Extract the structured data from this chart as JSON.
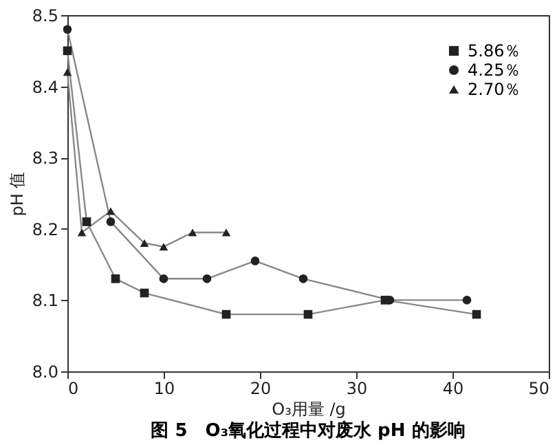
{
  "chart_data": {
    "type": "line",
    "title": "图 5　O₃氧化过程中对废水 pH 的影响",
    "xlabel": "O₃用量 /g",
    "ylabel": "pH 值",
    "xlim": [
      0,
      50
    ],
    "xticks": [
      0,
      10,
      20,
      30,
      40,
      50
    ],
    "ylim": [
      8.0,
      8.5
    ],
    "yticks": [
      {
        "value": 8,
        "label": "8.0"
      },
      8.1,
      8.2,
      8.3,
      8.4,
      8.5
    ],
    "grid": false,
    "legend": "top right",
    "line_style": "solid",
    "series": [
      {
        "name": "5.86％",
        "color": "#222222",
        "marker": "square",
        "x": [
          0,
          2,
          5,
          8,
          16.5,
          25,
          33,
          42.5
        ],
        "values": [
          8.45,
          8.21,
          8.13,
          8.11,
          8.08,
          8.08,
          8.1,
          8.08
        ]
      },
      {
        "name": "4.25％",
        "color": "#222222",
        "marker": "circle",
        "x": [
          0,
          4.5,
          10,
          14.5,
          19.5,
          24.5,
          33.5,
          41.5
        ],
        "values": [
          8.48,
          8.21,
          8.13,
          8.13,
          8.155,
          8.13,
          8.1,
          8.1
        ]
      },
      {
        "name": "2.70％",
        "color": "#222222",
        "marker": "triangle",
        "x": [
          0,
          1.5,
          4.5,
          8,
          10,
          13,
          16.5
        ],
        "values": [
          8.42,
          8.195,
          8.225,
          8.18,
          8.175,
          8.195,
          8.195
        ]
      }
    ]
  }
}
